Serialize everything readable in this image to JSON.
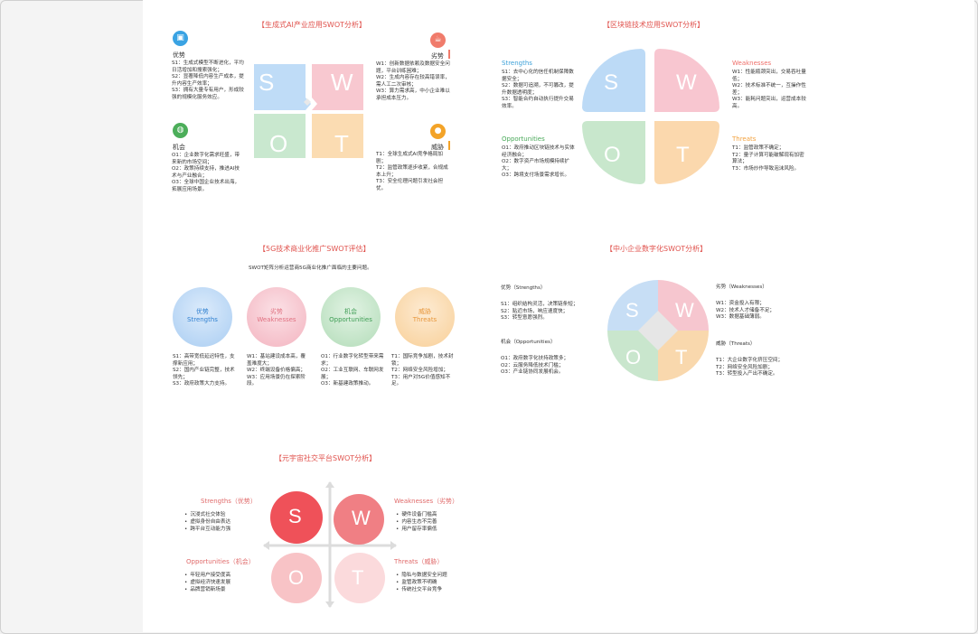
{
  "d1": {
    "title": "【生成式AI产业应用SWOT分析】",
    "strengths_head": "优势",
    "strengths": "S1：生成式模型不断进化，平均日活增加和搜索强化；\nS2：显著降低内容生产成本，提升内容生产效率；\nS3：拥有大量专有用户，形成较强的规模化服务效应。",
    "weaknesses_head": "劣势",
    "weaknesses": "W1：创新数据依赖及数据安全问题，平台训练困难；\nW2：生成内容存在较高错误率，需人工二次审核；\nW3：算力需求高，中小企业难以承担成本压力。",
    "opportunities_head": "机会",
    "opportunities": "O1：企业数字化需求旺盛，带来新的市场空间；\nO2：政策持续支持，推进AI技术与产业融合；\nO3：全球中国企业技术出海，拓展应用场景。",
    "threats_head": "威胁",
    "threats": "T1：全球生成式AI竞争格局加剧；\nT2：监管政策逐步收紧，合规成本上升；\nT3：安全伦理问题引发社会担忧。",
    "letters": [
      "S",
      "W",
      "O",
      "T"
    ],
    "colors": [
      "#bfdcf7",
      "#f8c8d0",
      "#c9e8cf",
      "#fbdcb2"
    ]
  },
  "d2": {
    "title": "【区块链技术应用SWOT分析】",
    "strengths_head": "Strengths",
    "strengths": "S1：去中心化的信任机制保障数据安全；\nS2：数据可追溯，不可篡改，提升数据透明度；\nS3：智能合约自动执行提升交易效率。",
    "weaknesses_head": "Weaknesses",
    "weaknesses": "W1：性能瓶颈突出，交易吞吐量低；\nW2：技术标准不统一，互操作性差；\nW3：能耗问题突出，运营成本较高。",
    "opportunities_head": "Opportunities",
    "opportunities": "O1：政府推动区块链技术与实体经济融合；\nO2：数字资产市场规模持续扩大；\nO3：跨境支付场景需求增长。",
    "threats_head": "Threats",
    "threats": "T1：监管政策不确定；\nT2：量子计算可能破解现有加密算法；\nT3：市场炒作导致泡沫风险。",
    "letters": [
      "S",
      "W",
      "O",
      "T"
    ],
    "colors": [
      "#bcdaf6",
      "#f8c6d0",
      "#c8e7cc",
      "#fbd8ad"
    ]
  },
  "d3": {
    "title": "【5G技术商业化推广SWOT评估】",
    "subtitle": "SWOT矩阵分析运营商5G商业化推广面临的主要问题。",
    "circles": [
      {
        "cn": "优势",
        "en": "Strengths",
        "text": "S1：高带宽低延迟特性，支撑新应用；\nS2：国内产业链完整，技术领先；\nS3：政府政策大力支持。"
      },
      {
        "cn": "劣势",
        "en": "Weaknesses",
        "text": "W1：基站建设成本高，覆盖难度大；\nW2：终端设备价格偏高；\nW3：应用场景仍在探索阶段。"
      },
      {
        "cn": "机会",
        "en": "Opportunities",
        "text": "O1：行业数字化转型带来需求；\nO2：工业互联网、车联网发展；\nO3：新基建政策推动。"
      },
      {
        "cn": "威胁",
        "en": "Threats",
        "text": "T1：国际竞争加剧，技术封锁；\nT2：网络安全风险增加；\nT3：用户对5G价值感知不足。"
      }
    ]
  },
  "d4": {
    "title": "【中小企业数字化SWOT分析】",
    "strengths_head": "优势（Strengths）",
    "strengths": "S1：组织结构灵活，决策链条短；\nS2：贴近市场，响应速度快；\nS3：转型意愿强烈。",
    "weaknesses_head": "劣势（Weaknesses）",
    "weaknesses": "W1：资金投入有限；\nW2：技术人才储备不足；\nW3：数据基础薄弱。",
    "opportunities_head": "机会（Opportunities）",
    "opportunities": "O1：政府数字化扶持政策多；\nO2：云服务降低技术门槛；\nO3：产业链协同发展机会。",
    "threats_head": "威胁（Threats）",
    "threats": "T1：大企业数字化挤压空间；\nT2：网络安全风险加剧；\nT3：转型投入产出不确定。",
    "letters": [
      "S",
      "W",
      "O",
      "T"
    ]
  },
  "d5": {
    "title": "【元宇宙社交平台SWOT分析】",
    "strengths_head": "Strengths（优势）",
    "strengths": [
      "沉浸式社交体验",
      "虚拟身份自由表达",
      "跨平台互动能力强"
    ],
    "weaknesses_head": "Weaknesses（劣势）",
    "weaknesses": [
      "硬件设备门槛高",
      "内容生态不完善",
      "用户留存率偏低"
    ],
    "opportunities_head": "Opportunities（机会）",
    "opportunities": [
      "年轻用户接受度高",
      "虚拟经济快速发展",
      "品牌营销新场景"
    ],
    "threats_head": "Threats（威胁）",
    "threats": [
      "隐私与数据安全问题",
      "监管政策不明确",
      "传统社交平台竞争"
    ],
    "letters": [
      "S",
      "W",
      "O",
      "T"
    ]
  }
}
